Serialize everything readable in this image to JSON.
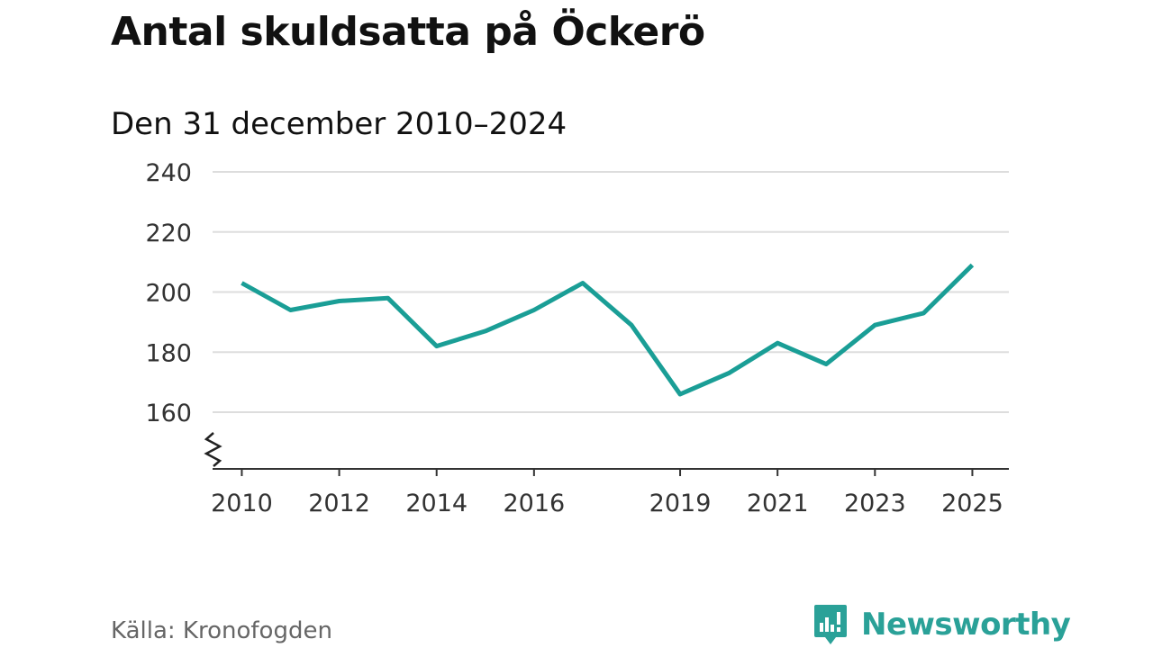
{
  "chart_data": {
    "type": "line",
    "title": "Antal skuldsatta på Öckerö",
    "subtitle": "Den 31 december 2010–2024",
    "xlabel": "",
    "ylabel": "",
    "x": [
      2010,
      2011,
      2012,
      2013,
      2014,
      2015,
      2016,
      2017,
      2018,
      2019,
      2020,
      2021,
      2022,
      2023,
      2024,
      2025
    ],
    "series": [
      {
        "name": "Antal skuldsatta",
        "color": "#1a9e96",
        "values": [
          203,
          194,
          197,
          198,
          182,
          187,
          194,
          203,
          189,
          166,
          173,
          183,
          176,
          189,
          193,
          209
        ]
      }
    ],
    "x_tick_labels": [
      "2010",
      "2012",
      "2014",
      "2016",
      "2019",
      "2021",
      "2023",
      "2025"
    ],
    "y_ticks": [
      160,
      180,
      200,
      220,
      240
    ],
    "y_tick_labels": [
      "160",
      "180",
      "200",
      "220",
      "240"
    ],
    "xlim": [
      2009.4,
      2025.75
    ],
    "ylim": [
      140,
      240
    ],
    "axis_break": true,
    "grid": true
  },
  "footer": {
    "source": "Källa: Kronofogden",
    "brand": "Newsworthy"
  },
  "colors": {
    "line": "#1a9e96",
    "brand": "#2aa198",
    "grid": "#dddddd",
    "axis": "#333333"
  },
  "icons": {
    "brand_logo": "newsworthy-logo-icon",
    "axis_break": "axis-break-icon"
  }
}
